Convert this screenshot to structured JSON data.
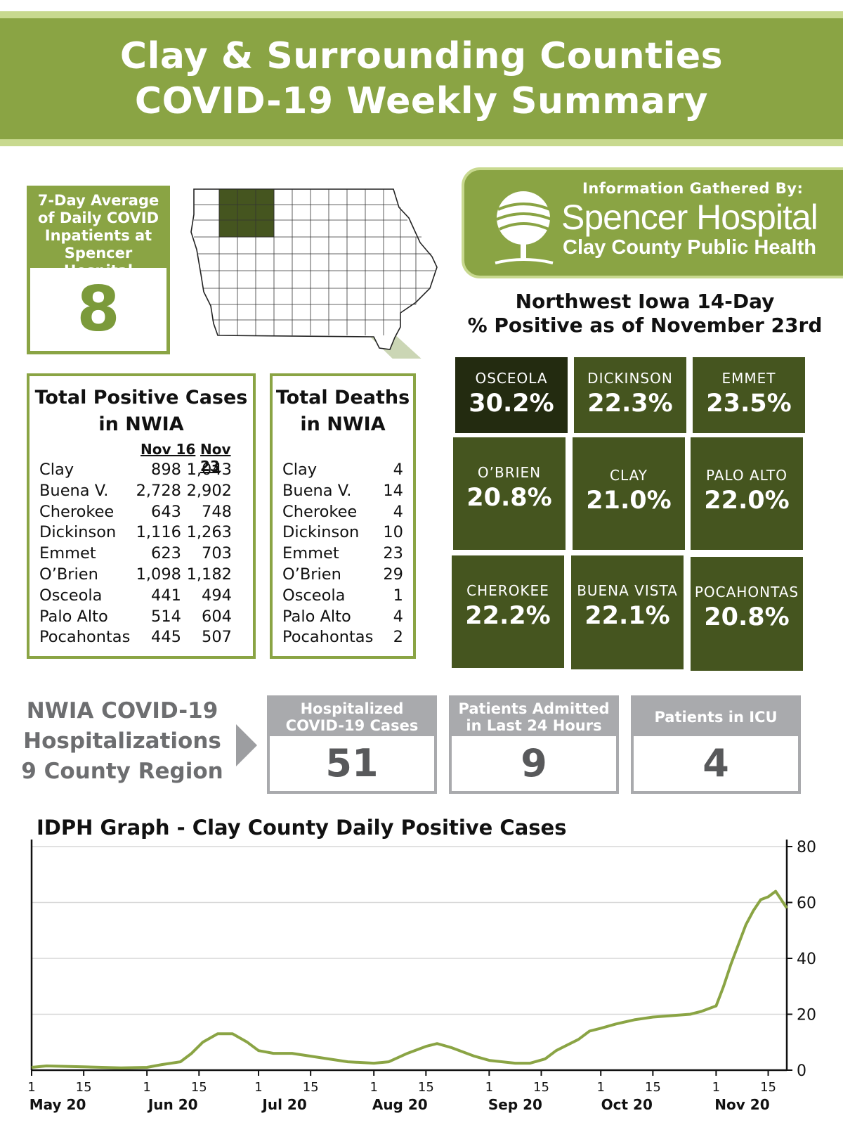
{
  "header": {
    "line1": "Clay & Surrounding Counties",
    "line2": "COVID-19 Weekly Summary"
  },
  "inpatients": {
    "label_lines": [
      "7-Day Average",
      "of Daily COVID",
      "Inpatients at",
      "Spencer Hospital"
    ],
    "value": "8"
  },
  "info": {
    "gathered_by": "Information Gathered By:",
    "org_name": "Spencer Hospital",
    "org_sub": "Clay County Public Health"
  },
  "positivity": {
    "title_line1": "Northwest Iowa 14-Day",
    "title_line2": "% Positive as of November 23rd",
    "counties": [
      {
        "name": "OSCEOLA",
        "value": "30.2%"
      },
      {
        "name": "DICKINSON",
        "value": "22.3%"
      },
      {
        "name": "EMMET",
        "value": "23.5%"
      },
      {
        "name": "O’BRIEN",
        "value": "20.8%"
      },
      {
        "name": "CLAY",
        "value": "21.0%"
      },
      {
        "name": "PALO ALTO",
        "value": "22.0%"
      },
      {
        "name": "CHEROKEE",
        "value": "22.2%"
      },
      {
        "name": "BUENA VISTA",
        "value": "22.1%"
      },
      {
        "name": "POCAHONTAS",
        "value": "20.8%"
      }
    ]
  },
  "cases": {
    "title_line1": "Total Positive Cases",
    "title_line2": "in NWIA",
    "col1": "Nov 16",
    "col2": "Nov 23",
    "rows": [
      {
        "county": "Clay",
        "nov16": "898",
        "nov23": "1,043"
      },
      {
        "county": "Buena V.",
        "nov16": "2,728",
        "nov23": "2,902"
      },
      {
        "county": "Cherokee",
        "nov16": "643",
        "nov23": "748"
      },
      {
        "county": "Dickinson",
        "nov16": "1,116",
        "nov23": "1,263"
      },
      {
        "county": "Emmet",
        "nov16": "623",
        "nov23": "703"
      },
      {
        "county": "O’Brien",
        "nov16": "1,098",
        "nov23": "1,182"
      },
      {
        "county": "Osceola",
        "nov16": "441",
        "nov23": "494"
      },
      {
        "county": "Palo Alto",
        "nov16": "514",
        "nov23": "604"
      },
      {
        "county": "Pocahontas",
        "nov16": "445",
        "nov23": "507"
      }
    ]
  },
  "deaths": {
    "title_line1": "Total Deaths",
    "title_line2": "in NWIA",
    "rows": [
      {
        "county": "Clay",
        "value": "4"
      },
      {
        "county": "Buena V.",
        "value": "14"
      },
      {
        "county": "Cherokee",
        "value": "4"
      },
      {
        "county": "Dickinson",
        "value": "10"
      },
      {
        "county": "Emmet",
        "value": "23"
      },
      {
        "county": "O’Brien",
        "value": "29"
      },
      {
        "county": "Osceola",
        "value": "1"
      },
      {
        "county": "Palo Alto",
        "value": "4"
      },
      {
        "county": "Pocahontas",
        "value": "2"
      }
    ]
  },
  "hospitalizations": {
    "title_lines": [
      "NWIA COVID-19",
      "Hospitalizations",
      "9 County Region"
    ],
    "boxes": [
      {
        "label_lines": [
          "Hospitalized",
          "COVID-19 Cases"
        ],
        "value": "51"
      },
      {
        "label_lines": [
          "Patients Admitted",
          "in Last 24 Hours"
        ],
        "value": "9"
      },
      {
        "label_lines": [
          "Patients in ICU"
        ],
        "value": "4"
      }
    ]
  },
  "graph": {
    "title": "IDPH Graph - Clay County Daily Positive Cases"
  },
  "chart_data": {
    "type": "line",
    "ylim": [
      0,
      80
    ],
    "y_ticks": [
      "0",
      "20",
      "40",
      "60",
      "80"
    ],
    "grid": true,
    "months": [
      {
        "label": "May 20",
        "ticks": [
          "1",
          "15"
        ]
      },
      {
        "label": "Jun 20",
        "ticks": [
          "1",
          "15"
        ]
      },
      {
        "label": "Jul 20",
        "ticks": [
          "1",
          "15"
        ]
      },
      {
        "label": "Aug 20",
        "ticks": [
          "1",
          "15"
        ]
      },
      {
        "label": "Sep 20",
        "ticks": [
          "1",
          "15"
        ]
      },
      {
        "label": "Oct 20",
        "ticks": [
          "1",
          "15"
        ]
      },
      {
        "label": "Nov 20",
        "ticks": [
          "1",
          "15"
        ]
      }
    ],
    "series": [
      {
        "color": "#8aa444",
        "points": [
          [
            "2020-05-01",
            1
          ],
          [
            "2020-05-05",
            1.5
          ],
          [
            "2020-05-15",
            1.2
          ],
          [
            "2020-05-25",
            0.8
          ],
          [
            "2020-06-01",
            1
          ],
          [
            "2020-06-05",
            2
          ],
          [
            "2020-06-10",
            3
          ],
          [
            "2020-06-13",
            6
          ],
          [
            "2020-06-16",
            10
          ],
          [
            "2020-06-20",
            13
          ],
          [
            "2020-06-24",
            13
          ],
          [
            "2020-06-28",
            10
          ],
          [
            "2020-07-01",
            7
          ],
          [
            "2020-07-05",
            6
          ],
          [
            "2020-07-10",
            6
          ],
          [
            "2020-07-15",
            5
          ],
          [
            "2020-07-20",
            4
          ],
          [
            "2020-07-25",
            3
          ],
          [
            "2020-08-01",
            2.5
          ],
          [
            "2020-08-05",
            3
          ],
          [
            "2020-08-10",
            6
          ],
          [
            "2020-08-15",
            8.5
          ],
          [
            "2020-08-18",
            9.5
          ],
          [
            "2020-08-22",
            8
          ],
          [
            "2020-08-28",
            5
          ],
          [
            "2020-09-01",
            3.5
          ],
          [
            "2020-09-08",
            2.5
          ],
          [
            "2020-09-12",
            2.5
          ],
          [
            "2020-09-16",
            4
          ],
          [
            "2020-09-19",
            7
          ],
          [
            "2020-09-22",
            9
          ],
          [
            "2020-09-25",
            11
          ],
          [
            "2020-09-28",
            14
          ],
          [
            "2020-10-01",
            15
          ],
          [
            "2020-10-05",
            16.5
          ],
          [
            "2020-10-10",
            18
          ],
          [
            "2020-10-15",
            19
          ],
          [
            "2020-10-20",
            19.5
          ],
          [
            "2020-10-25",
            20
          ],
          [
            "2020-10-28",
            21
          ],
          [
            "2020-11-01",
            23
          ],
          [
            "2020-11-03",
            30
          ],
          [
            "2020-11-05",
            38
          ],
          [
            "2020-11-07",
            45
          ],
          [
            "2020-11-09",
            52
          ],
          [
            "2020-11-11",
            57
          ],
          [
            "2020-11-13",
            61
          ],
          [
            "2020-11-15",
            62
          ],
          [
            "2020-11-17",
            64
          ],
          [
            "2020-11-18",
            62
          ],
          [
            "2020-11-19",
            60
          ],
          [
            "2020-11-20",
            58
          ]
        ]
      }
    ]
  }
}
